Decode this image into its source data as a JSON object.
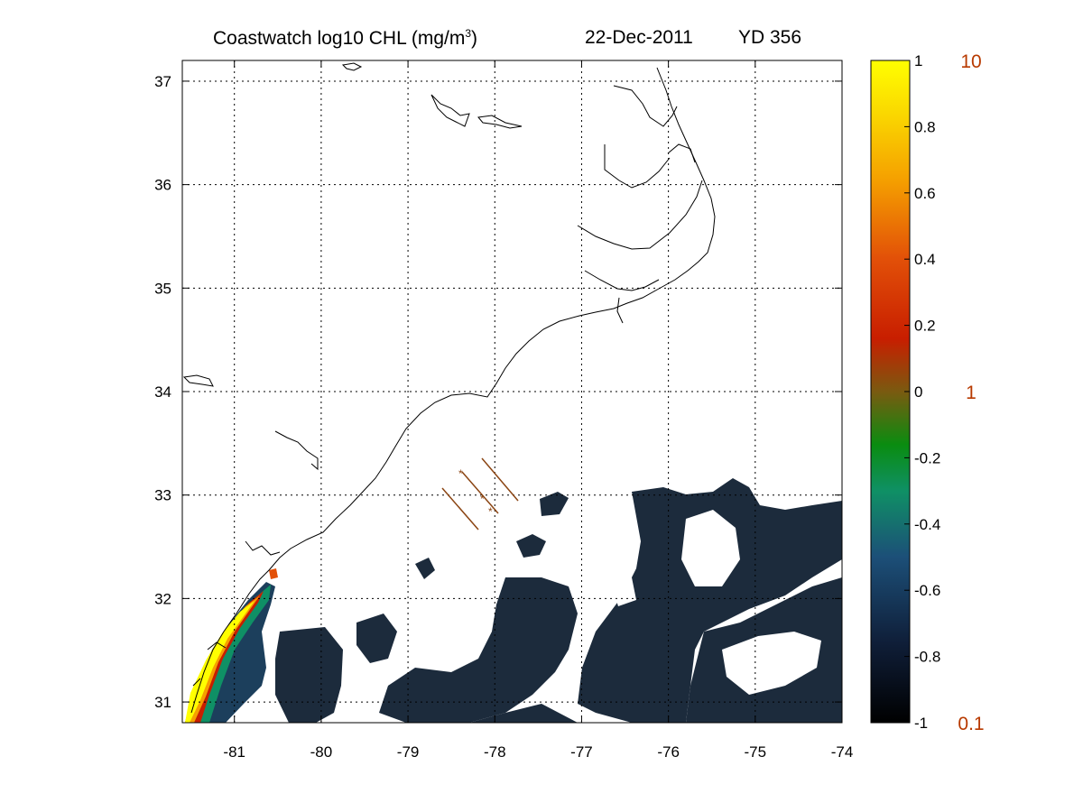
{
  "title": {
    "prefix": "Coastwatch  log10  CHL (mg/m",
    "superscript": "3",
    "suffix": ")",
    "date": "22-Dec-2011",
    "yearday": "YD 356"
  },
  "map": {
    "lon_range": [
      -81.6,
      -74
    ],
    "lat_range": [
      30.8,
      37.2
    ],
    "x_ticks": [
      "-81",
      "-80",
      "-79",
      "-78",
      "-77",
      "-76",
      "-75",
      "-74"
    ],
    "y_ticks": [
      "31",
      "32",
      "33",
      "34",
      "35",
      "36",
      "37"
    ],
    "grid": "dotted"
  },
  "colorbar": {
    "range": [
      -1,
      1
    ],
    "ticks": [
      "1",
      "0.8",
      "0.6",
      "0.4",
      "0.2",
      "0",
      "-0.2",
      "-0.4",
      "-0.6",
      "-0.8",
      "-1"
    ],
    "linear_labels": [
      "10",
      "1",
      "0.1"
    ]
  },
  "colors": {
    "high": "#ffff00",
    "mid": "#8b4513",
    "low": "#000000",
    "ocean_low": "#1c2b3c",
    "coastline": "#000000",
    "glider_track": "#8b4513",
    "linear_label": "#b83a00"
  }
}
